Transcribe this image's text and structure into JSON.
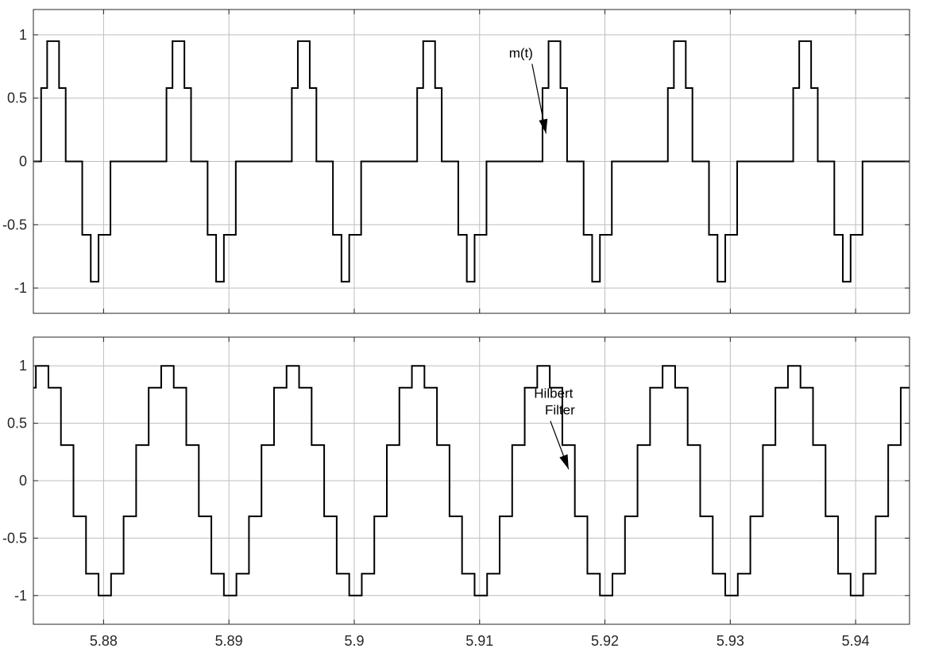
{
  "chart_data": [
    {
      "type": "line",
      "name": "top-axes",
      "title": "",
      "xlabel": "",
      "ylabel": "",
      "xlim": [
        5.8744,
        5.9443
      ],
      "ylim": [
        -1.2,
        1.2
      ],
      "xticks": [
        5.88,
        5.89,
        5.9,
        5.91,
        5.92,
        5.93,
        5.94
      ],
      "xtick_labels": [],
      "yticks": [
        1,
        0.5,
        0,
        -0.5,
        -1
      ],
      "ytick_labels": [
        "1",
        "0.5",
        "0",
        "-0.5",
        "-1"
      ],
      "grid": true,
      "series": [
        {
          "step_pattern": {
            "period": 0.01,
            "start": 5.8744,
            "offsets": [
              0.0,
              0.00062,
              0.0011,
              0.00205,
              0.00258,
              0.0039,
              0.00458,
              0.0052,
              0.00615,
              0.00668
            ],
            "levels": [
              0.0,
              0.58,
              0.95,
              0.58,
              0.0,
              -0.58,
              -0.95,
              -0.58,
              0.0,
              0.0
            ]
          },
          "end": 5.9443,
          "color": "#000000"
        }
      ],
      "annotations": [
        {
          "text": "m(t)",
          "x": 5.9133,
          "y": 0.82,
          "arrow_x": 5.9153,
          "arrow_y": 0.22
        }
      ]
    },
    {
      "type": "line",
      "name": "bottom-axes",
      "title": "",
      "xlabel": "",
      "ylabel": "",
      "xlim": [
        5.8744,
        5.9443
      ],
      "ylim": [
        -1.25,
        1.25
      ],
      "xticks": [
        5.88,
        5.89,
        5.9,
        5.91,
        5.92,
        5.93,
        5.94
      ],
      "xtick_labels": [
        "5.88",
        "5.89",
        "5.9",
        "5.91",
        "5.92",
        "5.93",
        "5.94"
      ],
      "yticks": [
        1,
        0.5,
        0,
        -0.5,
        -1
      ],
      "ytick_labels": [
        "1",
        "0.5",
        "0",
        "-0.5",
        "-1"
      ],
      "grid": true,
      "series": [
        {
          "step_pattern": {
            "period": 0.01,
            "start": 5.8716,
            "offsets": [
              0.0,
              0.001,
              0.002,
              0.003,
              0.004,
              0.005,
              0.006,
              0.007,
              0.008,
              0.009
            ],
            "levels": [
              -0.31,
              0.31,
              0.81,
              1.0,
              0.81,
              0.31,
              -0.31,
              -0.81,
              -1.0,
              -0.81
            ]
          },
          "end": 5.9443,
          "color": "#000000"
        }
      ],
      "annotations": [
        {
          "text": "Hilbert\nFilter",
          "x": 5.9159,
          "y": 0.72,
          "arrow_x": 5.9171,
          "arrow_y": 0.1
        }
      ]
    }
  ]
}
